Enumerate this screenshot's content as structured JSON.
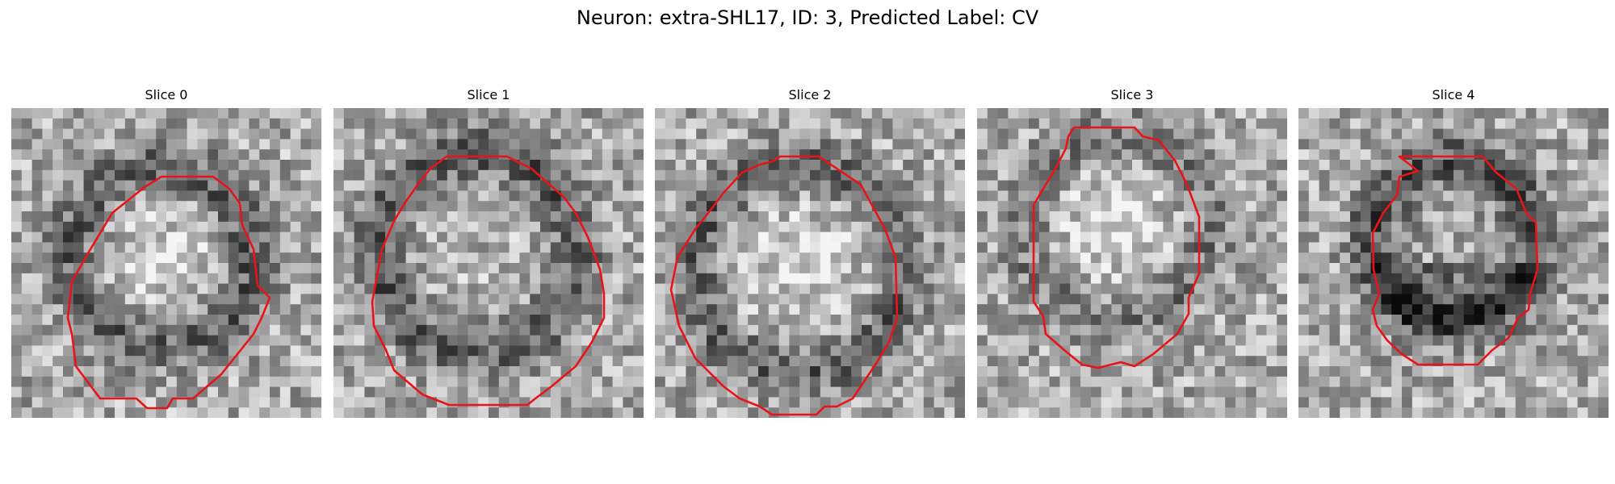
{
  "figure": {
    "title": "Neuron: extra-SHL17, ID: 3, Predicted Label: CV",
    "contour_color": "#e8141a",
    "slices": [
      {
        "label": "Slice 0",
        "shading": "dark-rim-bright-center"
      },
      {
        "label": "Slice 1",
        "shading": "dark-rim-mottled-center"
      },
      {
        "label": "Slice 2",
        "shading": "dark-rim-bright-center"
      },
      {
        "label": "Slice 3",
        "shading": "faint-rim-bright-center"
      },
      {
        "label": "Slice 4",
        "shading": "dark-rim-dark-lower"
      }
    ]
  }
}
